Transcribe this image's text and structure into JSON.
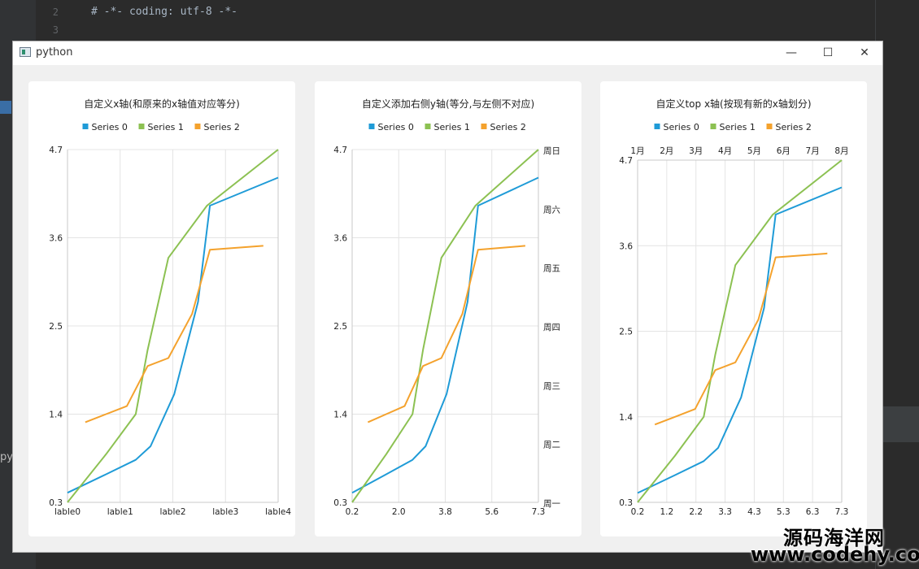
{
  "editor": {
    "lines": [
      {
        "num": "2",
        "text": "# -*- coding: utf-8 -*-"
      },
      {
        "num": "3",
        "text": ""
      }
    ],
    "bottom_text": "py"
  },
  "window": {
    "title": "python",
    "minimize_icon": "minimize-icon",
    "maximize_icon": "maximize-icon",
    "close_icon": "close-icon"
  },
  "colors": {
    "series0": "#1f9bd7",
    "series1": "#8cc152",
    "series2": "#f4a22d"
  },
  "chart_data": [
    {
      "type": "line",
      "title": "自定义x轴(和原来的x轴值对应等分)",
      "legend": [
        "Series 0",
        "Series 1",
        "Series 2"
      ],
      "legend_position": "top",
      "grid": true,
      "xlim": [
        0.2,
        7.3
      ],
      "ylim": [
        0.3,
        4.7
      ],
      "x_tick_labels": [
        "lable0",
        "lable1",
        "lable2",
        "lable3",
        "lable4"
      ],
      "y_tick_labels": [
        "0.3",
        "1.4",
        "2.5",
        "3.6",
        "4.7"
      ],
      "series": [
        {
          "name": "Series 0",
          "x": [
            0.2,
            1.5,
            2.5,
            3.0,
            3.8,
            4.6,
            5.0,
            7.3
          ],
          "y": [
            0.42,
            0.65,
            0.83,
            1.0,
            1.65,
            2.8,
            4.0,
            4.35
          ]
        },
        {
          "name": "Series 1",
          "x": [
            0.2,
            1.5,
            2.5,
            2.9,
            3.6,
            4.9,
            7.3
          ],
          "y": [
            0.3,
            0.9,
            1.4,
            2.2,
            3.35,
            4.0,
            4.7
          ]
        },
        {
          "name": "Series 2",
          "x": [
            0.8,
            1.5,
            2.2,
            2.9,
            3.6,
            4.4,
            5.0,
            6.8
          ],
          "y": [
            1.3,
            1.4,
            1.5,
            2.0,
            2.1,
            2.65,
            3.45,
            3.5
          ]
        }
      ]
    },
    {
      "type": "line",
      "title": "自定义添加右侧y轴(等分,与左侧不对应)",
      "legend": [
        "Series 0",
        "Series 1",
        "Series 2"
      ],
      "legend_position": "top",
      "grid": true,
      "xlim": [
        0.2,
        7.3
      ],
      "ylim": [
        0.3,
        4.7
      ],
      "x_tick_labels": [
        "0.2",
        "2.0",
        "3.8",
        "5.6",
        "7.3"
      ],
      "y_tick_labels": [
        "0.3",
        "1.4",
        "2.5",
        "3.6",
        "4.7"
      ],
      "y2_tick_labels": [
        "周一",
        "周二",
        "周三",
        "周四",
        "周五",
        "周六",
        "周日"
      ],
      "series": [
        {
          "name": "Series 0",
          "x": [
            0.2,
            1.5,
            2.5,
            3.0,
            3.8,
            4.6,
            5.0,
            7.3
          ],
          "y": [
            0.42,
            0.65,
            0.83,
            1.0,
            1.65,
            2.8,
            4.0,
            4.35
          ]
        },
        {
          "name": "Series 1",
          "x": [
            0.2,
            1.5,
            2.5,
            2.9,
            3.6,
            4.9,
            7.3
          ],
          "y": [
            0.3,
            0.9,
            1.4,
            2.2,
            3.35,
            4.0,
            4.7
          ]
        },
        {
          "name": "Series 2",
          "x": [
            0.8,
            1.5,
            2.2,
            2.9,
            3.6,
            4.4,
            5.0,
            6.8
          ],
          "y": [
            1.3,
            1.4,
            1.5,
            2.0,
            2.1,
            2.65,
            3.45,
            3.5
          ]
        }
      ]
    },
    {
      "type": "line",
      "title": "自定义top x轴(按现有新的x轴划分)",
      "legend": [
        "Series 0",
        "Series 1",
        "Series 2"
      ],
      "legend_position": "top",
      "grid": true,
      "xlim": [
        0.2,
        7.3
      ],
      "ylim": [
        0.3,
        4.7
      ],
      "x_tick_labels": [
        "0.2",
        "1.2",
        "2.2",
        "3.3",
        "4.3",
        "5.3",
        "6.3",
        "7.3"
      ],
      "y_tick_labels": [
        "0.3",
        "1.4",
        "2.5",
        "3.6",
        "4.7"
      ],
      "top_tick_labels": [
        "1月",
        "2月",
        "3月",
        "4月",
        "5月",
        "6月",
        "7月",
        "8月"
      ],
      "series": [
        {
          "name": "Series 0",
          "x": [
            0.2,
            1.5,
            2.5,
            3.0,
            3.8,
            4.6,
            5.0,
            7.3
          ],
          "y": [
            0.42,
            0.65,
            0.83,
            1.0,
            1.65,
            2.8,
            4.0,
            4.35
          ]
        },
        {
          "name": "Series 1",
          "x": [
            0.2,
            1.5,
            2.5,
            2.9,
            3.6,
            4.9,
            7.3
          ],
          "y": [
            0.3,
            0.9,
            1.4,
            2.2,
            3.35,
            4.0,
            4.7
          ]
        },
        {
          "name": "Series 2",
          "x": [
            0.8,
            1.5,
            2.2,
            2.9,
            3.6,
            4.4,
            5.0,
            6.8
          ],
          "y": [
            1.3,
            1.4,
            1.5,
            2.0,
            2.1,
            2.65,
            3.45,
            3.5
          ]
        }
      ]
    }
  ],
  "watermark": {
    "line1": "源码海洋网",
    "line2": "www.codehy.com"
  }
}
